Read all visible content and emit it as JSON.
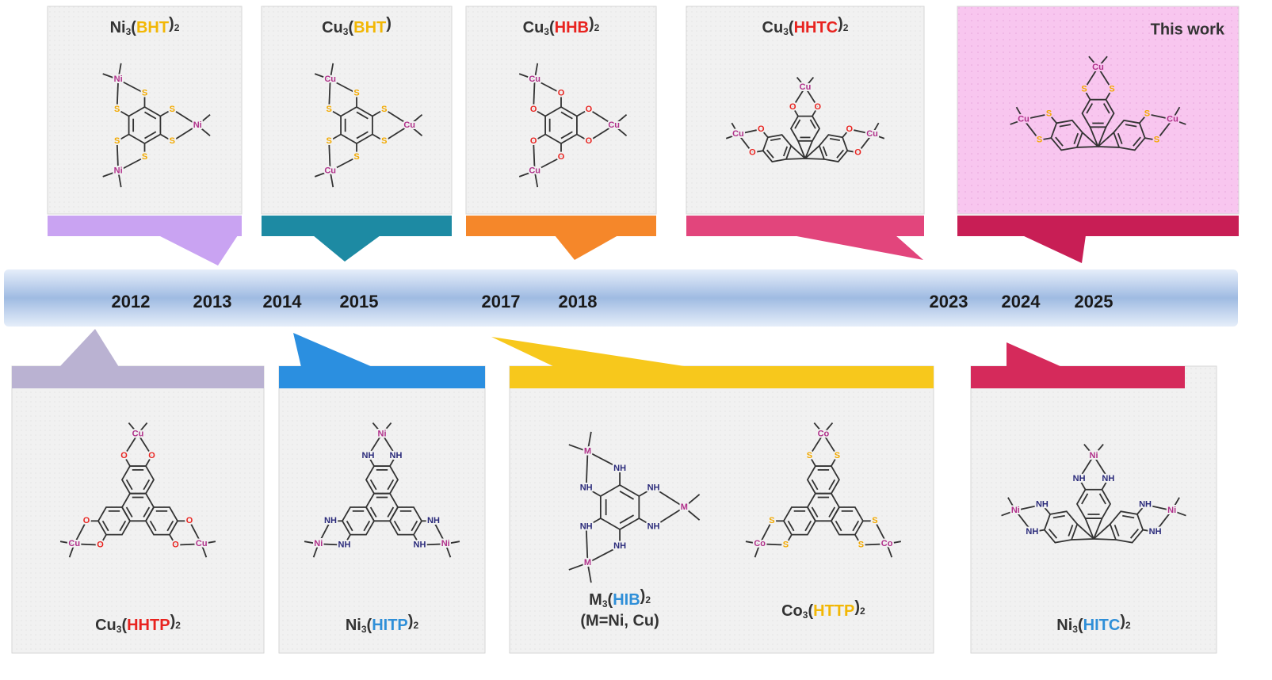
{
  "this_work": "This work",
  "years": [
    "2012",
    "2013",
    "2014",
    "2015",
    "2017",
    "2018",
    "2023",
    "2024",
    "2025"
  ],
  "top": [
    {
      "color": "#c9a3f2",
      "compounds": [
        {
          "formula": [
            "Ni",
            "3",
            "(",
            "BHT",
            ")",
            "2"
          ],
          "ligand_color": "#f2b705",
          "motif": "benzene",
          "metal": "Ni",
          "donor": "S",
          "donor_color": "#f2a900"
        }
      ]
    },
    {
      "color": "#1d8aa3",
      "compounds": [
        {
          "formula": [
            "Cu",
            "3",
            "(",
            "BHT",
            ")"
          ],
          "ligand_color": "#f2b705",
          "motif": "benzene",
          "metal": "Cu",
          "donor": "S",
          "donor_color": "#f2a900"
        }
      ]
    },
    {
      "color": "#f5872a",
      "compounds": [
        {
          "formula": [
            "Cu",
            "3",
            "(",
            "HHB",
            ")",
            "2"
          ],
          "ligand_color": "#e8231f",
          "motif": "benzene",
          "metal": "Cu",
          "donor": "O",
          "donor_color": "#e8231f"
        }
      ]
    },
    {
      "color": "#e2457c",
      "compounds": [
        {
          "formula": [
            "Cu",
            "3",
            "(",
            "HHTC",
            ")",
            "2"
          ],
          "ligand_color": "#e8231f",
          "motif": "triptycene",
          "metal": "Cu",
          "donor": "O",
          "donor_color": "#e8231f"
        }
      ]
    },
    {
      "color": "#c81e55",
      "compounds": [
        {
          "motif": "triptycene",
          "metal": "Cu",
          "donor": "S",
          "donor_color": "#f2a900"
        }
      ]
    }
  ],
  "bottom": [
    {
      "color": "#bab2d2",
      "compounds": [
        {
          "formula": [
            "Cu",
            "3",
            "(",
            "HHTP",
            ")",
            "2"
          ],
          "ligand_color": "#e8231f",
          "motif": "triphenylene",
          "metal": "Cu",
          "donor": "O",
          "donor_color": "#e8231f"
        }
      ]
    },
    {
      "color": "#2b8fe0",
      "compounds": [
        {
          "formula": [
            "Ni",
            "3",
            "(",
            "HITP",
            ")",
            "2"
          ],
          "ligand_color": "#2f8fd8",
          "motif": "triphenylene",
          "metal": "Ni",
          "donor": "NH",
          "donor_color": "#2a2a7a"
        }
      ]
    },
    {
      "color": "#f7c81c",
      "compounds": [
        {
          "formula": [
            "M",
            "3",
            "(",
            "HIB",
            ")",
            "2"
          ],
          "note": "(M=Ni, Cu)",
          "ligand_color": "#2f8fd8",
          "motif": "benzene",
          "metal": "M",
          "donor": "NH",
          "donor_color": "#2a2a7a"
        },
        {
          "formula": [
            "Co",
            "3",
            "(",
            "HTTP",
            ")",
            "2"
          ],
          "ligand_color": "#f2b705",
          "motif": "triphenylene",
          "metal": "Co",
          "donor": "S",
          "donor_color": "#f2a900"
        }
      ]
    },
    {
      "color": "#d52a5b",
      "compounds": [
        {
          "formula": [
            "Ni",
            "3",
            "(",
            "HITC",
            ")",
            "2"
          ],
          "ligand_color": "#2f8fd8",
          "motif": "triptycene",
          "metal": "Ni",
          "donor": "NH",
          "donor_color": "#2a2a7a"
        }
      ]
    }
  ]
}
